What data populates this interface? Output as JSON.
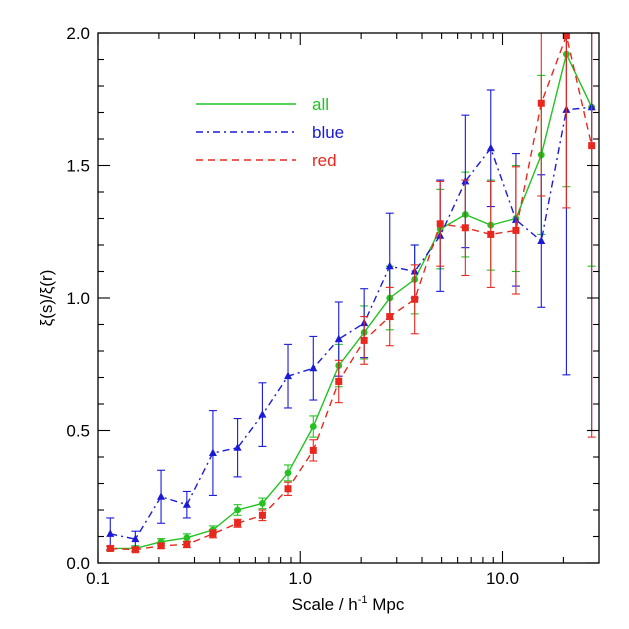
{
  "chart_data": {
    "type": "line",
    "xlabel_main": "Scale / h",
    "xlabel_sup": "-1",
    "xlabel_unit": " Mpc",
    "ylabel": "ξ(s)/ξ(r)",
    "xscale": "log",
    "xlim": [
      0.1,
      30
    ],
    "ylim": [
      0,
      2.0
    ],
    "xticks": [
      0.1,
      1.0,
      10.0
    ],
    "xtick_labels": [
      "0.1",
      "1.0",
      "10.0"
    ],
    "yticks": [
      0,
      0.5,
      1.0,
      1.5,
      2.0
    ],
    "ytick_labels": [
      "0.0",
      "0.5",
      "1.0",
      "1.5",
      "2.0"
    ],
    "legend_position": "top-left",
    "series": [
      {
        "name": "all",
        "color": "#22c322",
        "dash": "solid",
        "marker": "circle",
        "x": [
          0.115,
          0.153,
          0.205,
          0.275,
          0.37,
          0.49,
          0.65,
          0.87,
          1.16,
          1.55,
          2.07,
          2.77,
          3.68,
          4.92,
          6.55,
          8.75,
          11.65,
          15.55,
          20.7,
          27.6
        ],
        "y": [
          0.055,
          0.055,
          0.08,
          0.095,
          0.125,
          0.2,
          0.225,
          0.34,
          0.515,
          0.745,
          0.87,
          1.0,
          1.07,
          1.26,
          1.315,
          1.275,
          1.3,
          1.54,
          1.92,
          1.72
        ],
        "err": [
          0.01,
          0.01,
          0.012,
          0.015,
          0.015,
          0.02,
          0.02,
          0.03,
          0.04,
          0.08,
          0.1,
          0.12,
          0.13,
          0.15,
          0.16,
          0.17,
          0.2,
          0.3,
          0.5,
          0.6
        ]
      },
      {
        "name": "blue",
        "color": "#1a1ad8",
        "dash": "dashdot",
        "marker": "triangle",
        "x": [
          0.115,
          0.153,
          0.205,
          0.275,
          0.37,
          0.49,
          0.65,
          0.87,
          1.16,
          1.55,
          2.07,
          2.77,
          3.68,
          4.92,
          6.55,
          8.75,
          11.65,
          15.55,
          20.7,
          27.6
        ],
        "y": [
          0.11,
          0.09,
          0.25,
          0.22,
          0.415,
          0.435,
          0.56,
          0.705,
          0.735,
          0.845,
          0.905,
          1.12,
          1.1,
          1.235,
          1.44,
          1.565,
          1.295,
          1.215,
          1.71,
          1.72
        ],
        "err": [
          0.06,
          0.03,
          0.1,
          0.05,
          0.16,
          0.11,
          0.12,
          0.12,
          0.12,
          0.14,
          0.13,
          0.2,
          0.1,
          0.21,
          0.25,
          0.22,
          0.25,
          0.25,
          1.0,
          1.22
        ]
      },
      {
        "name": "red",
        "color": "#e8281e",
        "dash": "dashed",
        "marker": "square",
        "x": [
          0.115,
          0.153,
          0.205,
          0.275,
          0.37,
          0.49,
          0.65,
          0.87,
          1.16,
          1.55,
          2.07,
          2.77,
          3.68,
          4.92,
          6.55,
          8.75,
          11.65,
          15.55,
          20.7,
          27.6
        ],
        "y": [
          0.055,
          0.05,
          0.065,
          0.07,
          0.11,
          0.15,
          0.18,
          0.28,
          0.425,
          0.685,
          0.84,
          0.93,
          0.995,
          1.28,
          1.265,
          1.24,
          1.255,
          1.735,
          1.99,
          1.575
        ],
        "err": [
          0.008,
          0.008,
          0.01,
          0.012,
          0.015,
          0.015,
          0.02,
          0.025,
          0.04,
          0.08,
          0.09,
          0.11,
          0.13,
          0.16,
          0.18,
          0.2,
          0.24,
          0.35,
          0.65,
          1.1
        ]
      }
    ]
  }
}
